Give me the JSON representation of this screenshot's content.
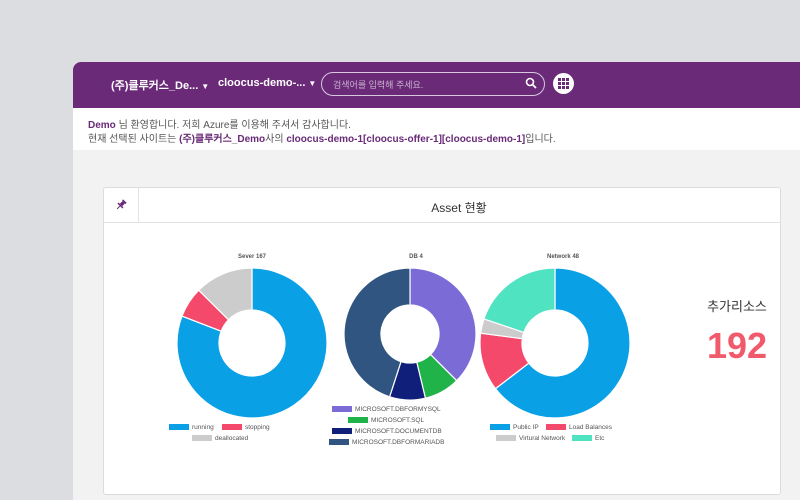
{
  "header": {
    "company_selector": "(주)클루커스_De...",
    "site_selector": "cloocus-demo-...",
    "search_placeholder": "검색어를 입력해 주세요."
  },
  "notice": {
    "line1_user": "Demo",
    "line1_text": " 님 환영합니다. 저희 Azure를 이용해 주셔서 감사합니다.",
    "line2_prefix": "현재 선택된 사이트는 ",
    "line2_company": "(주)클루커스_Demo",
    "line2_mid": "사의 ",
    "line2_site": "cloocus-demo-1[cloocus-offer-1][cloocus-demo-1]",
    "line2_suffix": "입니다."
  },
  "card": {
    "title": "Asset 현황",
    "extra_label": "추가리소스",
    "extra_value": "192"
  },
  "colors": {
    "brand": "#6a2a78",
    "accent_value": "#f05a6a"
  },
  "chart_data": [
    {
      "type": "pie",
      "title": "Sever 167",
      "series": [
        {
          "name": "running",
          "value": 135,
          "color": "#0aa0e6"
        },
        {
          "name": "stopping",
          "value": 11,
          "color": "#f5496b"
        },
        {
          "name": "deallocated",
          "value": 21,
          "color": "#cccccc"
        }
      ],
      "legend": "bottom"
    },
    {
      "type": "pie",
      "title": "DB 4",
      "series": [
        {
          "name": "MICROSOFT.DBFORMYSQL",
          "value": 1.5,
          "color": "#7b6bd6"
        },
        {
          "name": "MICROSOFT.SQL",
          "value": 0.35,
          "color": "#1fb34a"
        },
        {
          "name": "MICROSOFT.DOCUMENTDB",
          "value": 0.35,
          "color": "#10207a"
        },
        {
          "name": "MICROSOFT.DBFORMARIADB",
          "value": 1.8,
          "color": "#2f5580"
        }
      ],
      "legend": "bottom"
    },
    {
      "type": "pie",
      "title": "Network 48",
      "series": [
        {
          "name": "Public IP",
          "value": 31,
          "color": "#0aa0e6"
        },
        {
          "name": "Load Balances",
          "value": 6,
          "color": "#f5496b"
        },
        {
          "name": "Virtural Network",
          "value": 1.5,
          "color": "#cccccc"
        },
        {
          "name": "Etc",
          "value": 9.5,
          "color": "#4fe3c1"
        }
      ],
      "legend": "bottom"
    }
  ]
}
